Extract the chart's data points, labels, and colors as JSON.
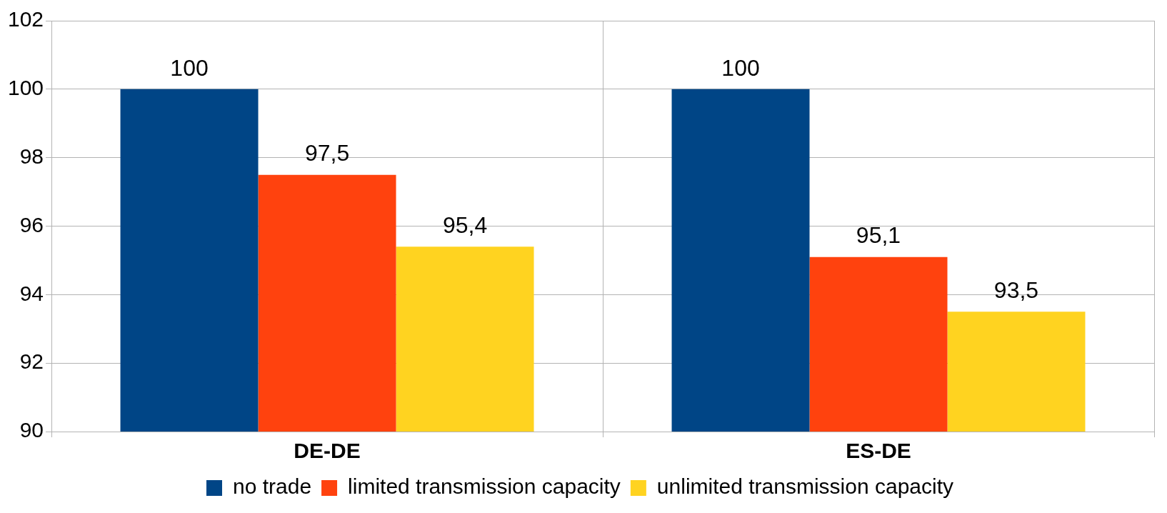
{
  "chart_data": {
    "type": "bar",
    "categories": [
      "DE-DE",
      "ES-DE"
    ],
    "series": [
      {
        "name": "no trade",
        "color": "#004586",
        "values": [
          100,
          100
        ],
        "value_labels": [
          "100",
          "100"
        ]
      },
      {
        "name": "limited transmission capacity",
        "color": "#ff420e",
        "values": [
          97.5,
          95.1
        ],
        "value_labels": [
          "97,5",
          "95,1"
        ]
      },
      {
        "name": "unlimited transmission capacity",
        "color": "#ffd320",
        "values": [
          95.4,
          93.5
        ],
        "value_labels": [
          "95,4",
          "93,5"
        ]
      }
    ],
    "ylim": [
      90,
      102
    ],
    "yticks": [
      90,
      92,
      94,
      96,
      98,
      100,
      102
    ],
    "grid": true,
    "legend": "bottom"
  }
}
